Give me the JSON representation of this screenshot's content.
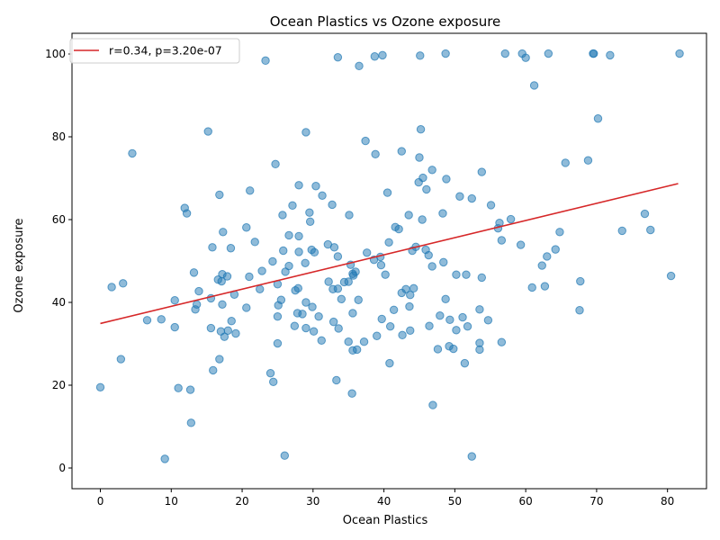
{
  "chart_data": {
    "type": "scatter",
    "title": "Ocean Plastics vs Ozone exposure",
    "xlabel": "Ocean Plastics",
    "ylabel": "Ozone exposure",
    "xlim": [
      -4,
      85.5
    ],
    "ylim": [
      -5,
      105
    ],
    "xticks": [
      0,
      10,
      20,
      30,
      40,
      50,
      60,
      70,
      80
    ],
    "yticks": [
      0,
      20,
      40,
      60,
      80,
      100
    ],
    "grid": false,
    "legend_placement": "top-left",
    "legend": [
      "r=0.34, p=3.20e-07"
    ],
    "point_color": "#1f77b4",
    "line_color": "#d62728",
    "regression_line": {
      "x": [
        0,
        81.5
      ],
      "y": [
        34.9,
        68.7
      ]
    },
    "points": [
      [
        0.0,
        19.5
      ],
      [
        1.6,
        43.7
      ],
      [
        2.9,
        26.3
      ],
      [
        3.2,
        44.6
      ],
      [
        4.5,
        76.0
      ],
      [
        6.6,
        35.7
      ],
      [
        8.6,
        35.9
      ],
      [
        9.1,
        2.2
      ],
      [
        10.5,
        40.5
      ],
      [
        10.5,
        34.0
      ],
      [
        11.0,
        19.3
      ],
      [
        11.9,
        62.8
      ],
      [
        12.2,
        61.5
      ],
      [
        12.7,
        18.9
      ],
      [
        12.8,
        10.9
      ],
      [
        13.2,
        47.2
      ],
      [
        13.4,
        38.3
      ],
      [
        13.6,
        39.5
      ],
      [
        13.9,
        42.7
      ],
      [
        15.2,
        81.3
      ],
      [
        15.6,
        41.0
      ],
      [
        15.6,
        33.8
      ],
      [
        15.8,
        53.3
      ],
      [
        15.9,
        23.6
      ],
      [
        16.6,
        45.5
      ],
      [
        16.8,
        26.3
      ],
      [
        16.8,
        66.0
      ],
      [
        17.0,
        33.0
      ],
      [
        17.1,
        45.1
      ],
      [
        17.2,
        39.5
      ],
      [
        17.2,
        46.8
      ],
      [
        17.3,
        57.0
      ],
      [
        17.5,
        31.7
      ],
      [
        17.9,
        46.3
      ],
      [
        18.0,
        33.2
      ],
      [
        18.4,
        53.1
      ],
      [
        18.5,
        35.5
      ],
      [
        18.9,
        41.9
      ],
      [
        19.1,
        32.5
      ],
      [
        20.6,
        58.1
      ],
      [
        20.6,
        38.7
      ],
      [
        21.0,
        46.2
      ],
      [
        21.1,
        67.0
      ],
      [
        21.8,
        54.6
      ],
      [
        22.5,
        43.2
      ],
      [
        22.8,
        47.6
      ],
      [
        23.3,
        98.4
      ],
      [
        24.0,
        22.9
      ],
      [
        24.3,
        49.9
      ],
      [
        24.4,
        20.8
      ],
      [
        24.7,
        73.4
      ],
      [
        25.0,
        44.4
      ],
      [
        25.0,
        36.6
      ],
      [
        25.0,
        30.1
      ],
      [
        25.1,
        39.3
      ],
      [
        25.5,
        40.6
      ],
      [
        25.7,
        61.1
      ],
      [
        25.8,
        52.5
      ],
      [
        26.0,
        3.0
      ],
      [
        26.1,
        47.4
      ],
      [
        26.6,
        48.8
      ],
      [
        26.6,
        56.2
      ],
      [
        27.1,
        63.4
      ],
      [
        27.4,
        34.3
      ],
      [
        27.5,
        42.9
      ],
      [
        27.8,
        37.4
      ],
      [
        27.9,
        43.4
      ],
      [
        28.0,
        68.3
      ],
      [
        28.0,
        56.0
      ],
      [
        28.0,
        52.2
      ],
      [
        28.5,
        37.2
      ],
      [
        28.9,
        49.5
      ],
      [
        29.0,
        81.1
      ],
      [
        29.0,
        33.8
      ],
      [
        29.0,
        40.0
      ],
      [
        29.5,
        61.7
      ],
      [
        29.6,
        59.5
      ],
      [
        29.8,
        52.7
      ],
      [
        29.9,
        38.9
      ],
      [
        30.1,
        33.0
      ],
      [
        30.2,
        52.1
      ],
      [
        30.4,
        68.1
      ],
      [
        30.8,
        36.6
      ],
      [
        31.2,
        30.8
      ],
      [
        31.3,
        65.8
      ],
      [
        32.1,
        54.0
      ],
      [
        32.2,
        45.0
      ],
      [
        32.7,
        63.6
      ],
      [
        32.8,
        43.2
      ],
      [
        32.9,
        35.3
      ],
      [
        33.0,
        53.3
      ],
      [
        33.3,
        21.2
      ],
      [
        33.5,
        99.2
      ],
      [
        33.5,
        43.3
      ],
      [
        33.5,
        51.1
      ],
      [
        33.6,
        33.7
      ],
      [
        34.0,
        40.8
      ],
      [
        34.4,
        44.9
      ],
      [
        35.0,
        45.0
      ],
      [
        35.0,
        30.5
      ],
      [
        35.1,
        61.1
      ],
      [
        35.3,
        49.1
      ],
      [
        35.5,
        18.0
      ],
      [
        35.6,
        37.4
      ],
      [
        35.6,
        28.4
      ],
      [
        35.6,
        46.9
      ],
      [
        35.7,
        46.5
      ],
      [
        36.0,
        47.4
      ],
      [
        36.2,
        28.6
      ],
      [
        36.4,
        40.6
      ],
      [
        36.5,
        97.1
      ],
      [
        37.2,
        30.5
      ],
      [
        37.4,
        79.0
      ],
      [
        37.6,
        52.0
      ],
      [
        38.6,
        50.3
      ],
      [
        38.7,
        99.4
      ],
      [
        38.8,
        75.8
      ],
      [
        39.0,
        31.9
      ],
      [
        39.5,
        51.0
      ],
      [
        39.6,
        49.0
      ],
      [
        39.7,
        36.0
      ],
      [
        39.8,
        99.7
      ],
      [
        40.2,
        46.7
      ],
      [
        40.5,
        66.5
      ],
      [
        40.7,
        54.5
      ],
      [
        40.8,
        25.3
      ],
      [
        40.9,
        34.2
      ],
      [
        41.4,
        38.2
      ],
      [
        41.6,
        58.2
      ],
      [
        42.1,
        57.7
      ],
      [
        42.5,
        76.5
      ],
      [
        42.5,
        42.3
      ],
      [
        42.6,
        32.1
      ],
      [
        43.1,
        43.2
      ],
      [
        43.5,
        61.1
      ],
      [
        43.6,
        39.0
      ],
      [
        43.7,
        41.8
      ],
      [
        43.7,
        33.2
      ],
      [
        44.0,
        52.5
      ],
      [
        44.2,
        43.4
      ],
      [
        44.5,
        53.4
      ],
      [
        44.9,
        69.0
      ],
      [
        45.0,
        75.0
      ],
      [
        45.1,
        99.6
      ],
      [
        45.2,
        81.8
      ],
      [
        45.4,
        60.0
      ],
      [
        45.5,
        70.1
      ],
      [
        45.9,
        52.7
      ],
      [
        46.0,
        67.3
      ],
      [
        46.3,
        51.4
      ],
      [
        46.4,
        34.3
      ],
      [
        46.8,
        48.7
      ],
      [
        46.8,
        72.0
      ],
      [
        46.9,
        15.2
      ],
      [
        47.6,
        28.7
      ],
      [
        47.9,
        36.8
      ],
      [
        48.3,
        61.5
      ],
      [
        48.4,
        49.7
      ],
      [
        48.7,
        100.1
      ],
      [
        48.7,
        40.8
      ],
      [
        48.8,
        69.8
      ],
      [
        49.2,
        29.4
      ],
      [
        49.3,
        35.8
      ],
      [
        49.8,
        28.8
      ],
      [
        50.2,
        46.7
      ],
      [
        50.2,
        33.3
      ],
      [
        50.7,
        65.6
      ],
      [
        51.1,
        36.4
      ],
      [
        51.4,
        25.3
      ],
      [
        51.6,
        46.7
      ],
      [
        51.8,
        34.2
      ],
      [
        52.4,
        2.8
      ],
      [
        52.4,
        65.1
      ],
      [
        53.5,
        38.3
      ],
      [
        53.5,
        28.6
      ],
      [
        53.5,
        30.2
      ],
      [
        53.8,
        71.5
      ],
      [
        53.8,
        46.0
      ],
      [
        54.7,
        35.7
      ],
      [
        55.1,
        63.5
      ],
      [
        56.1,
        57.9
      ],
      [
        56.3,
        59.2
      ],
      [
        56.6,
        30.4
      ],
      [
        56.6,
        55.0
      ],
      [
        57.1,
        100.1
      ],
      [
        57.9,
        60.1
      ],
      [
        59.3,
        53.9
      ],
      [
        59.5,
        100.1
      ],
      [
        60.0,
        99.1
      ],
      [
        60.9,
        43.6
      ],
      [
        61.2,
        92.4
      ],
      [
        62.3,
        48.9
      ],
      [
        62.7,
        43.9
      ],
      [
        63.0,
        51.1
      ],
      [
        63.2,
        100.1
      ],
      [
        64.2,
        52.8
      ],
      [
        64.8,
        57.0
      ],
      [
        65.6,
        73.7
      ],
      [
        67.6,
        38.1
      ],
      [
        67.7,
        45.1
      ],
      [
        68.8,
        74.3
      ],
      [
        69.5,
        100.1
      ],
      [
        69.6,
        100.1
      ],
      [
        70.2,
        84.4
      ],
      [
        71.9,
        99.7
      ],
      [
        73.6,
        57.3
      ],
      [
        76.8,
        61.4
      ],
      [
        77.6,
        57.5
      ],
      [
        80.5,
        46.4
      ],
      [
        81.7,
        100.1
      ]
    ]
  }
}
